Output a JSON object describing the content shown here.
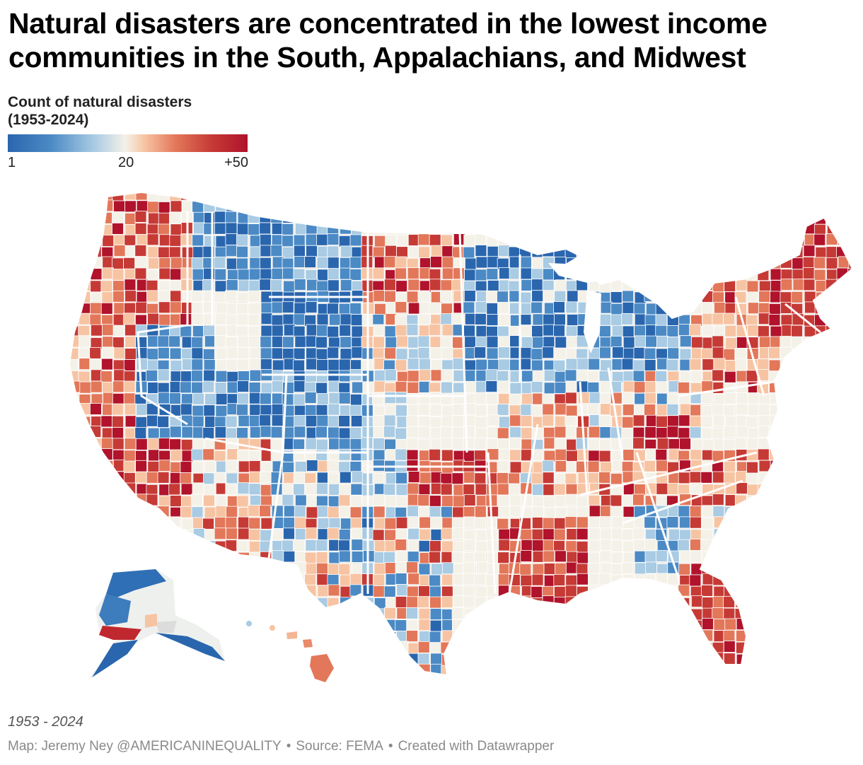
{
  "title": "Natural disasters are concentrated in the lowest income communities in the South, Appalachians, and Midwest",
  "legend": {
    "title_line1": "Count of natural disasters",
    "title_line2": "(1953-2024)",
    "tick_min": "1",
    "tick_mid": "20",
    "tick_max": "+50",
    "colors": [
      "#2a66ae",
      "#4b8ac5",
      "#a9cbe3",
      "#f4f1e8",
      "#f7c4a3",
      "#e3775a",
      "#c63a36",
      "#b0132b"
    ]
  },
  "map": {
    "type": "county choropleth",
    "region": "United States",
    "regions": {
      "pacific_northwest": "high",
      "california": "high",
      "nevada_utah_colorado_wyoming_montana_idaho": "low",
      "arizona_new_mexico": "mixed",
      "dakotas_minnesota": "high",
      "michigan_wisconsin_illinois": "low",
      "oklahoma": "very high",
      "texas": "mixed",
      "louisiana_mississippi_gulf": "very high",
      "florida": "very high",
      "appalachia_west_virginia_kentucky": "very high",
      "new_england_maine": "very high",
      "georgia_south_carolina": "mixed",
      "alaska": "low",
      "hawaii": "high"
    }
  },
  "date_range": "1953 - 2024",
  "credits": {
    "map": "Map: Jeremy Ney @AMERICANINEQUALITY",
    "source": "Source: FEMA",
    "tool": "Created with Datawrapper",
    "separator": "•"
  }
}
